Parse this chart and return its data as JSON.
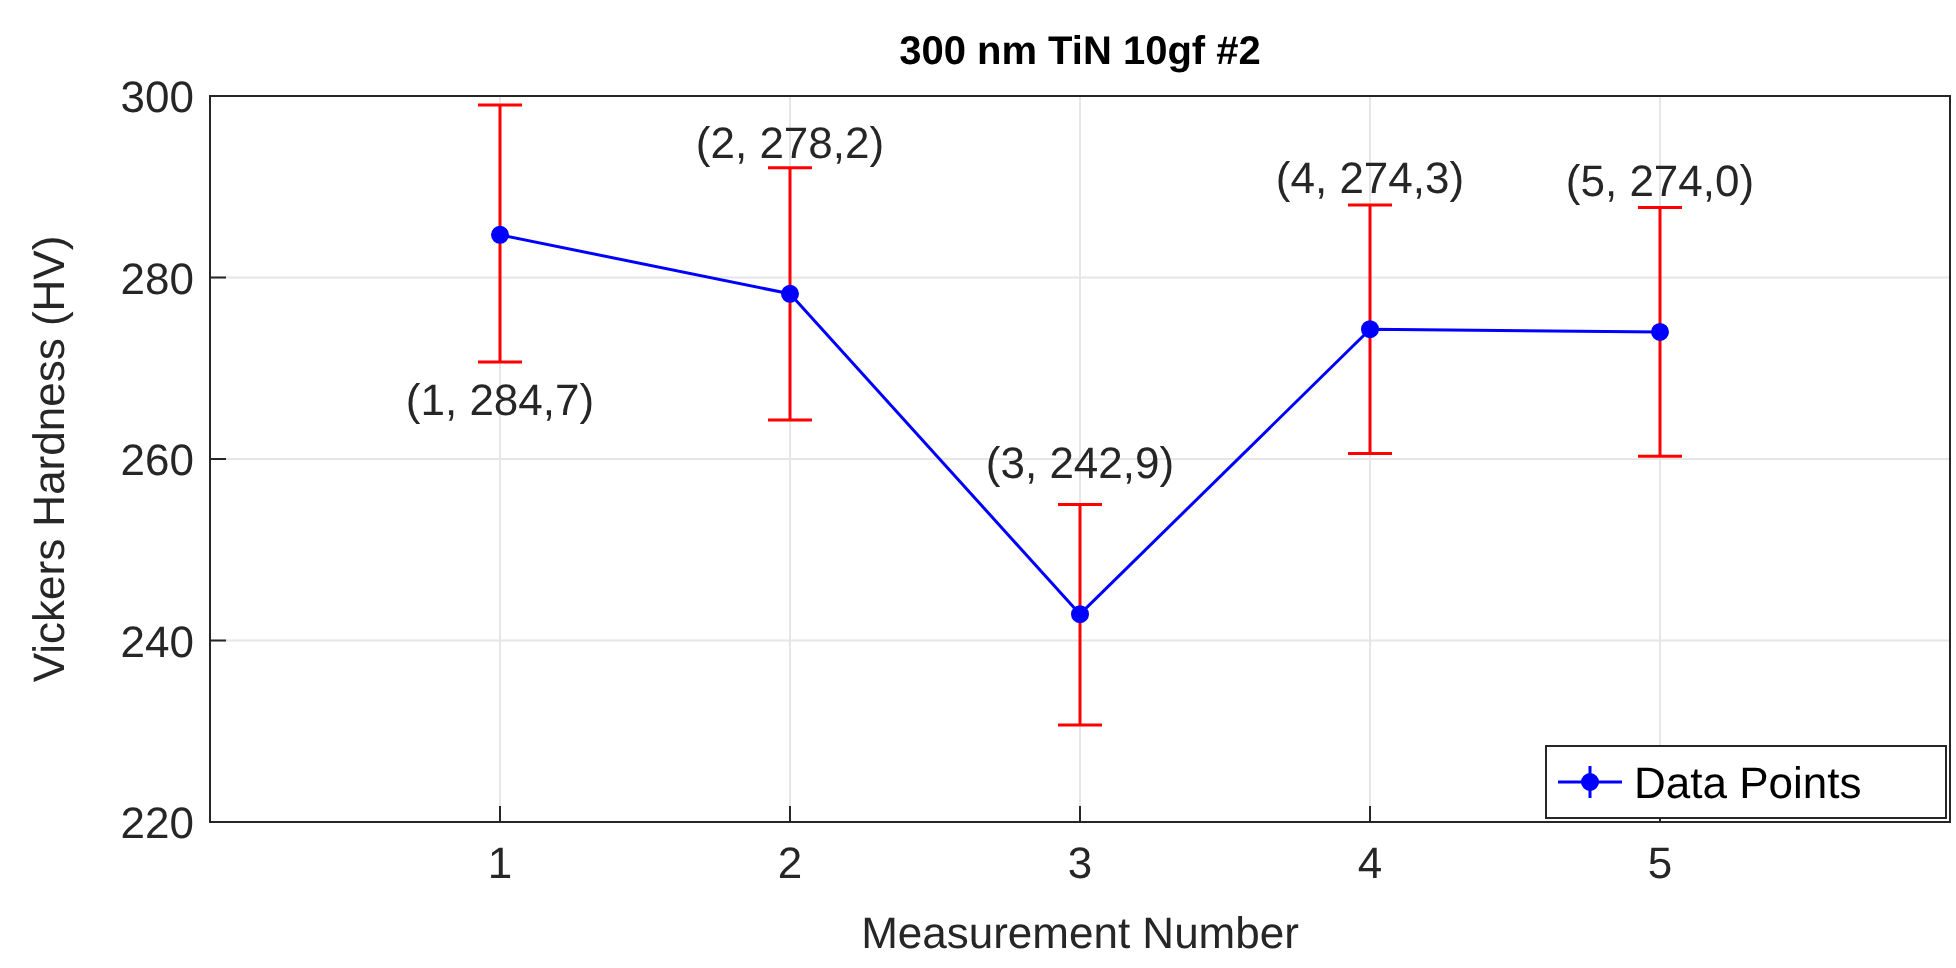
{
  "chart_data": {
    "type": "line",
    "title": "300 nm TiN 10gf #2",
    "xlabel": "Measurement Number",
    "ylabel": "Vickers Hardness (HV)",
    "x": [
      1,
      2,
      3,
      4,
      5
    ],
    "series": [
      {
        "name": "Data Points",
        "color": "#0000ff",
        "values": [
          284.7,
          278.2,
          242.9,
          274.3,
          274.0
        ],
        "errors": [
          [
            270.7,
            299.0
          ],
          [
            264.3,
            292.1
          ],
          [
            230.7,
            255.0
          ],
          [
            260.6,
            288.0
          ],
          [
            260.3,
            287.7
          ]
        ],
        "value_labels": [
          "(1, 284,7)",
          "(2, 278,2)",
          "(3, 242,9)",
          "(4, 274,3)",
          "(5, 274,0)"
        ]
      }
    ],
    "xlim": [
      0,
      6
    ],
    "xticks": [
      1,
      2,
      3,
      4,
      5
    ],
    "ylim": [
      220,
      300
    ],
    "yticks": [
      220,
      240,
      260,
      280,
      300
    ],
    "grid": true,
    "legend": "bottom right",
    "marker": "circle",
    "line_style": "solid"
  }
}
